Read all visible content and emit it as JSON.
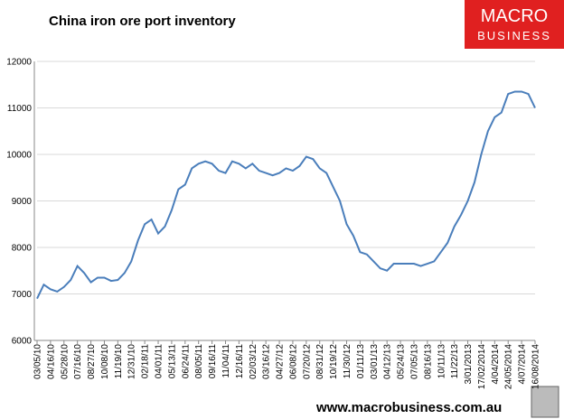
{
  "chart_data": {
    "type": "line",
    "title": "China iron ore port inventory",
    "logo": [
      "MACRO",
      "BUSINESS"
    ],
    "footer": "www.macrobusiness.com.au",
    "categories": [
      "03/05/10",
      null,
      "04/16/10",
      null,
      "05/28/10",
      null,
      "07/16/10",
      null,
      "08/27/10",
      null,
      "10/08/10",
      null,
      "11/19/10",
      null,
      "12/31/10",
      null,
      "02/18/11",
      null,
      "04/01/11",
      null,
      "05/13/11",
      null,
      "06/24/11",
      null,
      "08/05/11",
      null,
      "09/16/11",
      null,
      "11/04/11",
      null,
      "12/16/11",
      null,
      "02/03/12",
      null,
      "03/16/12",
      null,
      "04/27/12",
      null,
      "06/08/12",
      null,
      "07/20/12",
      null,
      "08/31/12",
      null,
      "10/19/12",
      null,
      "11/30/12",
      null,
      "01/11/13",
      null,
      "03/01/13",
      null,
      "04/12/13",
      null,
      "05/24/13",
      null,
      "07/05/13",
      null,
      "08/16/13",
      null,
      "10/11/13",
      null,
      "11/22/13",
      null,
      "3/01/2013",
      null,
      "17/02/2014",
      null,
      "4/04/2014",
      null,
      "24/05/2014",
      null,
      "4/07/2014",
      null,
      "16/08/2014"
    ],
    "series": [
      {
        "name": "Inventory",
        "color": "#4a7ebb",
        "values": [
          6900,
          7200,
          7100,
          7050,
          7150,
          7300,
          7600,
          7450,
          7250,
          7350,
          7350,
          7280,
          7300,
          7450,
          7700,
          8150,
          8500,
          8600,
          8300,
          8450,
          8800,
          9250,
          9350,
          9700,
          9800,
          9850,
          9800,
          9650,
          9600,
          9850,
          9800,
          9700,
          9800,
          9650,
          9600,
          9550,
          9600,
          9700,
          9650,
          9750,
          9950,
          9900,
          9700,
          9600,
          9300,
          9000,
          8500,
          8250,
          7900,
          7850,
          7700,
          7550,
          7500,
          7650,
          7650,
          7650,
          7650,
          7600,
          7650,
          7700,
          7900,
          8100,
          8450,
          8700,
          9000,
          9400,
          10000,
          10500,
          10800,
          10900,
          11300,
          11350,
          11350,
          11300,
          11000
        ]
      }
    ],
    "ylim": [
      6000,
      12000
    ],
    "yticks": [
      6000,
      7000,
      8000,
      9000,
      10000,
      11000,
      12000
    ],
    "grid": true
  }
}
